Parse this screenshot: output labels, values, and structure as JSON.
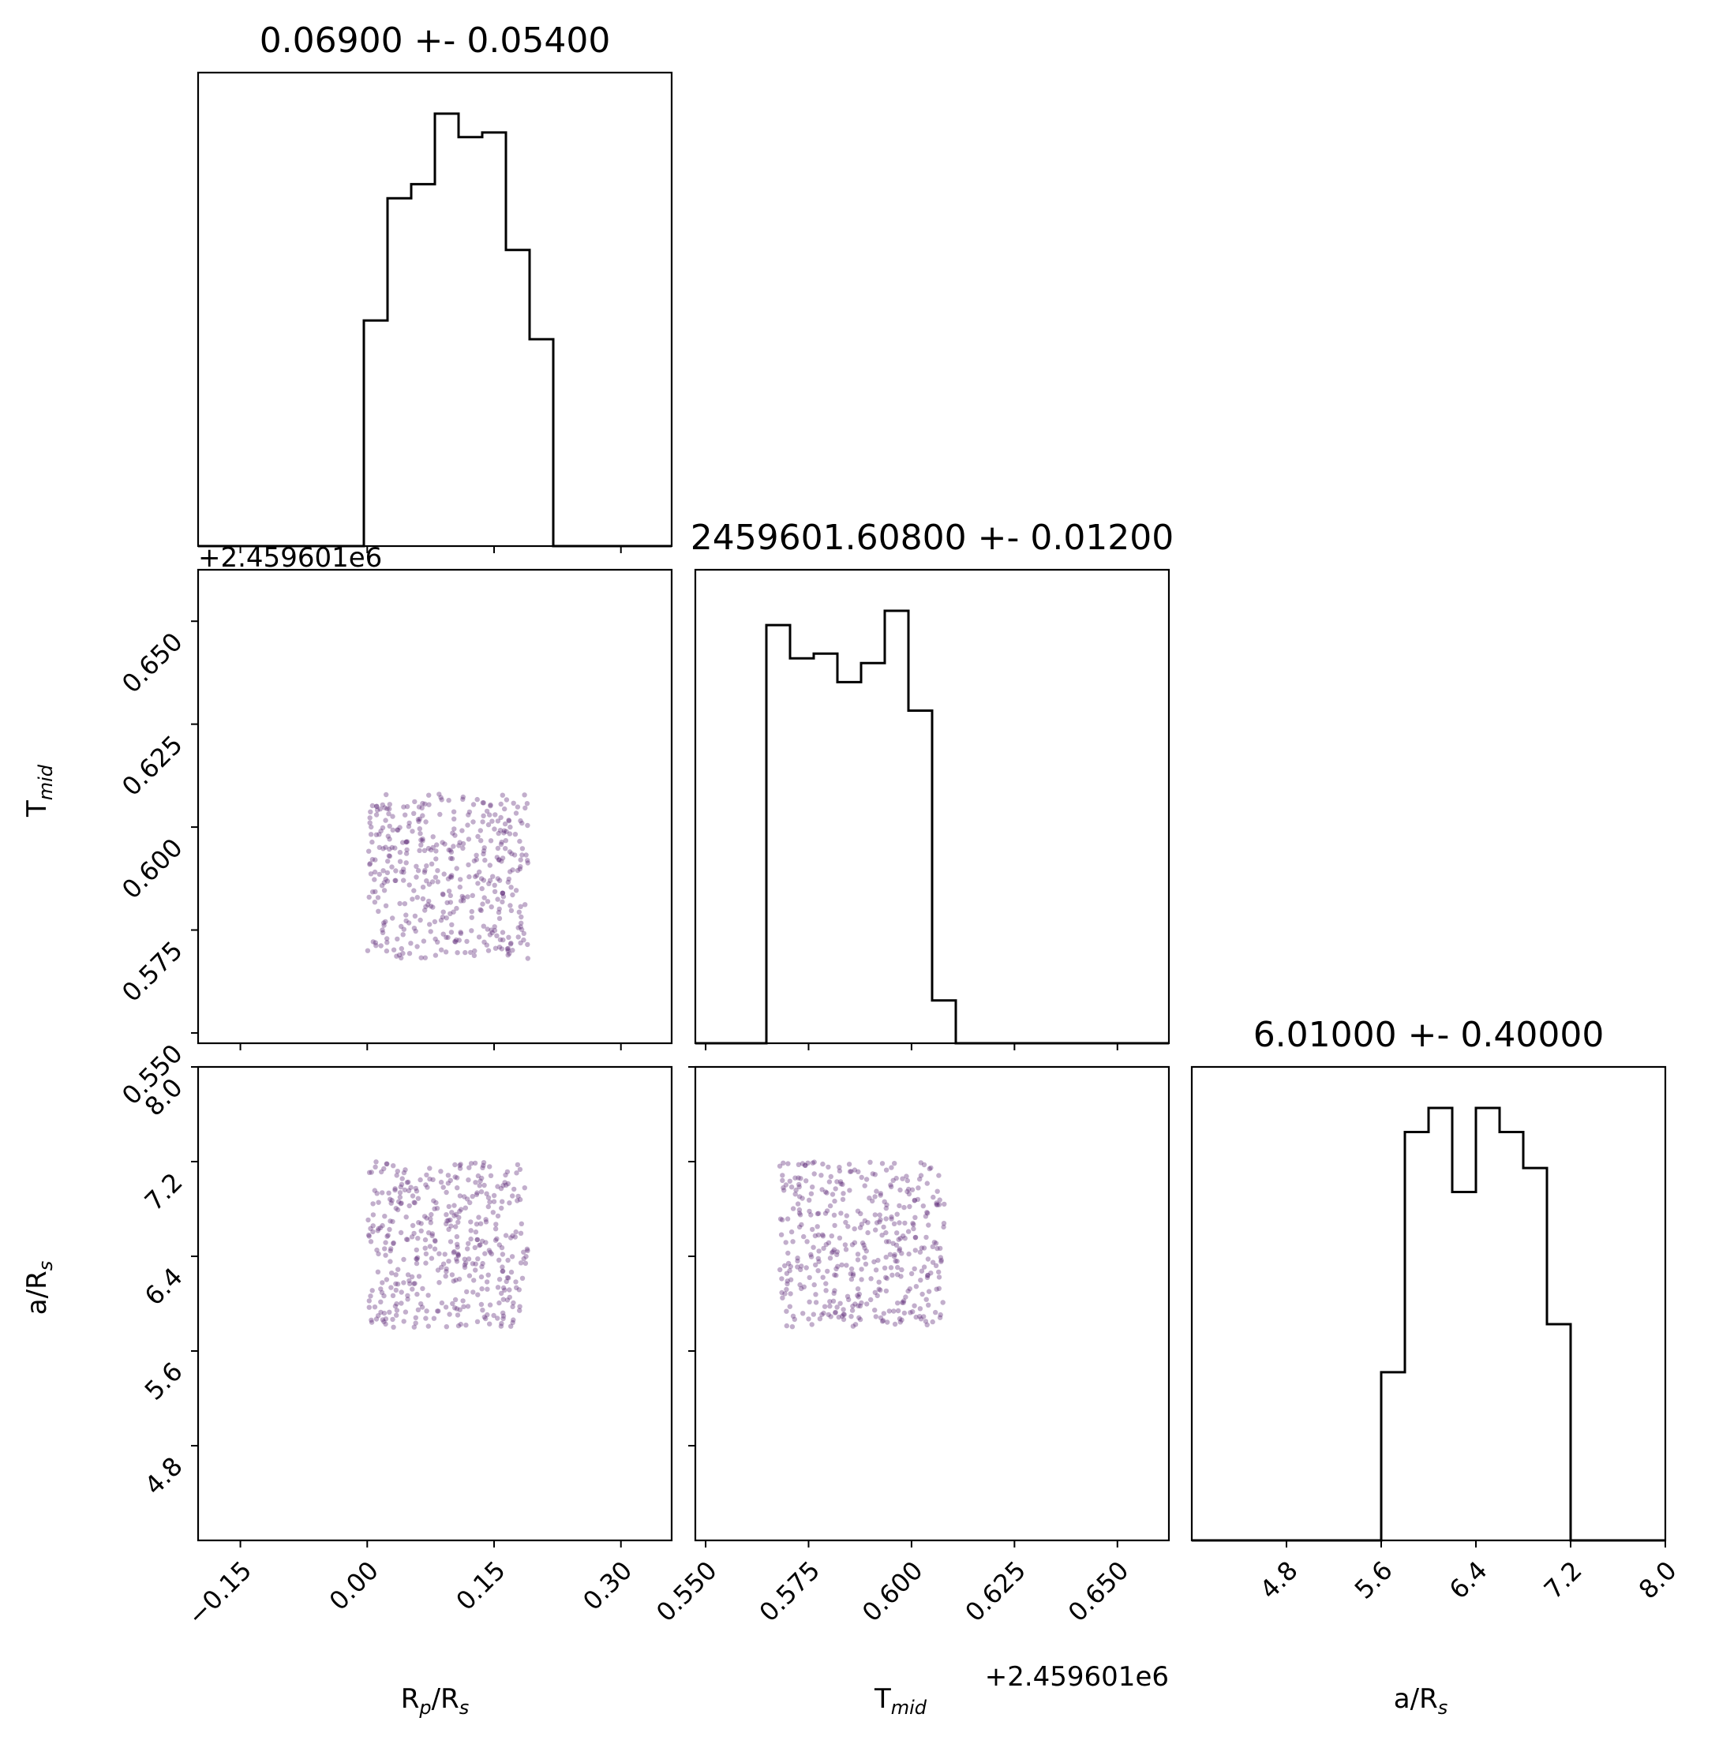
{
  "chart_data": {
    "type": "corner",
    "parameters": [
      {
        "key": "rprs",
        "label_main": "R",
        "label_sub": "p",
        "label_suffix": "/R",
        "label_suffix_sub": "s",
        "range": [
          -0.2,
          0.36
        ]
      },
      {
        "key": "tmid",
        "label_main": "T",
        "label_sub": "mid",
        "label_suffix": "",
        "label_suffix_sub": "",
        "range": [
          0.5475,
          0.6625
        ],
        "offset_label": "+2.459601e6"
      },
      {
        "key": "ars",
        "label_main": "a/R",
        "label_sub": "s",
        "label_suffix": "",
        "label_suffix_sub": "",
        "range": [
          4.0,
          8.0
        ]
      }
    ],
    "titles": [
      "0.06900 +- 0.05400",
      "2459601.60800 +- 0.01200",
      "6.01000 +- 0.40000"
    ],
    "ticks": {
      "rprs": {
        "values": [
          -0.15,
          0.0,
          0.15,
          0.3
        ],
        "labels": [
          "−0.15",
          "0.00",
          "0.15",
          "0.30"
        ]
      },
      "tmid": {
        "values": [
          0.55,
          0.575,
          0.6,
          0.625,
          0.65
        ],
        "labels": [
          "0.550",
          "0.575",
          "0.600",
          "0.625",
          "0.650"
        ]
      },
      "ars": {
        "values": [
          4.8,
          5.6,
          6.4,
          7.2,
          8.0
        ],
        "labels": [
          "4.8",
          "5.6",
          "6.4",
          "7.2",
          "8.0"
        ]
      },
      "ars_y": {
        "values": [
          4.8,
          5.6,
          6.4,
          7.2,
          8.0
        ],
        "labels": [
          "4.8",
          "5.6",
          "6.4",
          "7.2",
          "8.0"
        ]
      }
    },
    "histograms": [
      {
        "param": "rprs",
        "bin_start": -0.2,
        "bin_width": 0.028,
        "counts": [
          0,
          0,
          0,
          0,
          0,
          0,
          0,
          48,
          74,
          77,
          92,
          87,
          88,
          63,
          44,
          0,
          0,
          0,
          0,
          0
        ]
      },
      {
        "param": "tmid",
        "bin_start": 0.5475,
        "bin_width": 0.00575,
        "counts": [
          0,
          0,
          0,
          88,
          81,
          82,
          76,
          80,
          91,
          70,
          9,
          0,
          0,
          0,
          0,
          0,
          0,
          0,
          0,
          0
        ]
      },
      {
        "param": "ars",
        "bin_start": 4.0,
        "bin_width": 0.2,
        "counts": [
          0,
          0,
          0,
          0,
          0,
          0,
          0,
          0,
          28,
          68,
          72,
          58,
          72,
          68,
          62,
          36,
          0,
          0,
          0,
          0
        ]
      }
    ],
    "scatter_bounds": {
      "rprs": [
        0.0,
        0.19
      ],
      "tmid": [
        0.568,
        0.608
      ],
      "ars": [
        5.8,
        7.2
      ]
    },
    "scatter_count": 420,
    "point_color": "#5e2a78",
    "line_color": "#000000"
  }
}
